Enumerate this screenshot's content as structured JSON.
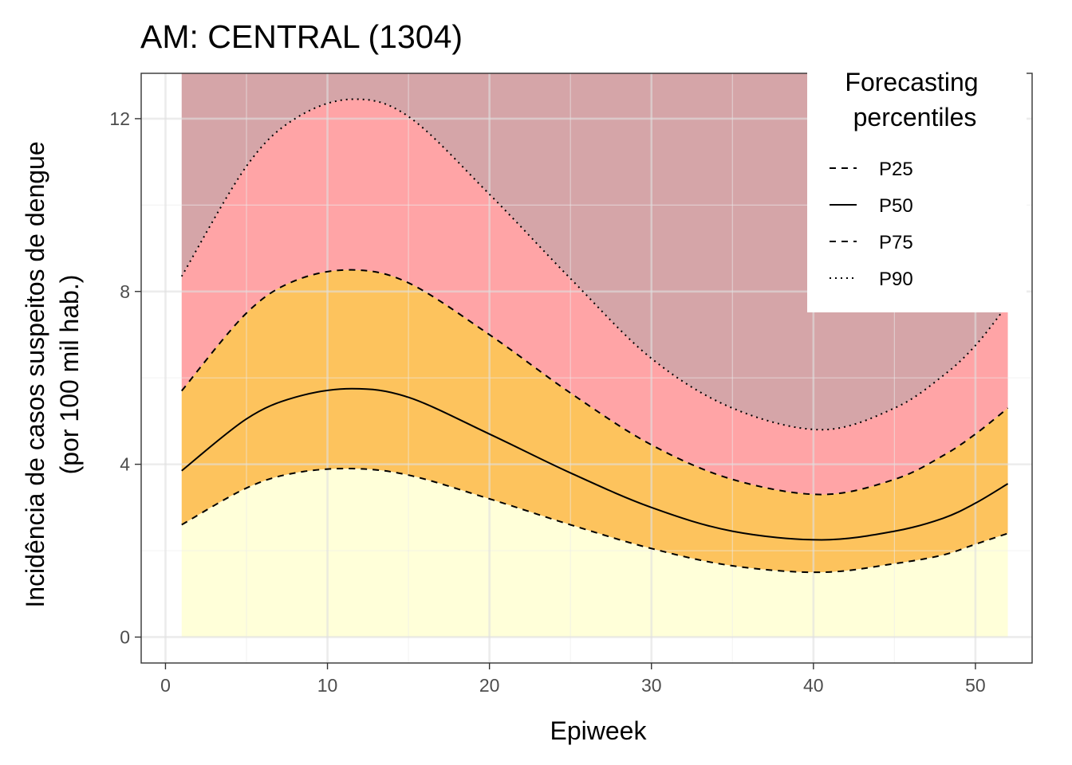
{
  "chart_data": {
    "type": "area",
    "title": "AM: CENTRAL (1304)",
    "xlabel": "Epiweek",
    "ylabel_line1": "Incidência de casos suspeitos de dengue",
    "ylabel_line2": "(por 100 mil hab.)",
    "xlim": [
      -1.5,
      53.5
    ],
    "ylim": [
      -0.6,
      13.05
    ],
    "x_ticks": [
      0,
      10,
      20,
      30,
      40,
      50
    ],
    "x_tick_labels": [
      "0",
      "10",
      "20",
      "30",
      "40",
      "50"
    ],
    "y_ticks": [
      0,
      4,
      8,
      12
    ],
    "y_tick_labels": [
      "0",
      "4",
      "8",
      "12"
    ],
    "x_minor_ticks": [
      5,
      15,
      25,
      35,
      45
    ],
    "y_minor_ticks": [
      2,
      6,
      10
    ],
    "grid": true,
    "legend": {
      "title_line1": "Forecasting",
      "title_line2": "percentiles",
      "placement": "top-right",
      "items": [
        {
          "label": "P25",
          "dash": "dashed"
        },
        {
          "label": "P50",
          "dash": "solid"
        },
        {
          "label": "P75",
          "dash": "dashed"
        },
        {
          "label": "P90",
          "dash": "dotted"
        }
      ]
    },
    "x": [
      1,
      5,
      8,
      11.5,
      15,
      20,
      25,
      30,
      35,
      40.5,
      45,
      48,
      50,
      52
    ],
    "series": [
      {
        "name": "P25",
        "dash": "dashed",
        "values": [
          2.6,
          3.45,
          3.8,
          3.9,
          3.75,
          3.2,
          2.6,
          2.05,
          1.65,
          1.5,
          1.7,
          1.9,
          2.15,
          2.4
        ]
      },
      {
        "name": "P50",
        "dash": "solid",
        "values": [
          3.85,
          5.05,
          5.55,
          5.75,
          5.55,
          4.7,
          3.8,
          3.0,
          2.45,
          2.25,
          2.45,
          2.75,
          3.1,
          3.55
        ]
      },
      {
        "name": "P75",
        "dash": "dashed",
        "values": [
          5.7,
          7.5,
          8.25,
          8.5,
          8.2,
          7.0,
          5.65,
          4.45,
          3.65,
          3.3,
          3.65,
          4.2,
          4.7,
          5.3
        ]
      },
      {
        "name": "P90",
        "dash": "dotted",
        "values": [
          8.35,
          10.9,
          12.0,
          12.45,
          12.05,
          10.25,
          8.3,
          6.45,
          5.3,
          4.8,
          5.3,
          6.05,
          6.75,
          7.7
        ]
      }
    ],
    "band_colors": {
      "below_p25": "#ffffd9",
      "p25_p75": "#fdc35d",
      "p75_p90": "#ffa4a6",
      "above_p90": "#d5a5a8"
    },
    "panel_top_value": 13.05
  }
}
